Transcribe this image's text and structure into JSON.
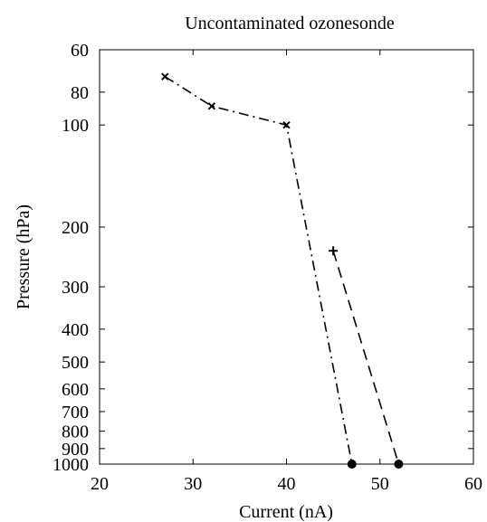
{
  "chart_data": {
    "type": "line",
    "title": "Uncontaminated ozonesonde",
    "xlabel": "Current (nA)",
    "ylabel": "Pressure (hPa)",
    "xlim": [
      20,
      60
    ],
    "ylim": [
      60,
      1000
    ],
    "yscale": "log",
    "y_reversed": true,
    "grid": false,
    "legend": "none",
    "x_ticks": [
      "20",
      "30",
      "40",
      "50",
      "60"
    ],
    "y_ticks": [
      "60",
      "80",
      "100",
      "200",
      "300",
      "400",
      "500",
      "600",
      "700",
      "800",
      "900",
      "1000"
    ],
    "series": [
      {
        "line_style": "dash-dot",
        "color": "#000000",
        "points": [
          {
            "x": 27,
            "y": 72,
            "marker": "x"
          },
          {
            "x": 32,
            "y": 88,
            "marker": "x"
          },
          {
            "x": 40,
            "y": 100,
            "marker": "x"
          },
          {
            "x": 47,
            "y": 1000,
            "marker": "dot"
          }
        ]
      },
      {
        "line_style": "dash",
        "color": "#000000",
        "points": [
          {
            "x": 45,
            "y": 235,
            "marker": "plus"
          },
          {
            "x": 52,
            "y": 1000,
            "marker": "dot"
          }
        ]
      }
    ]
  }
}
